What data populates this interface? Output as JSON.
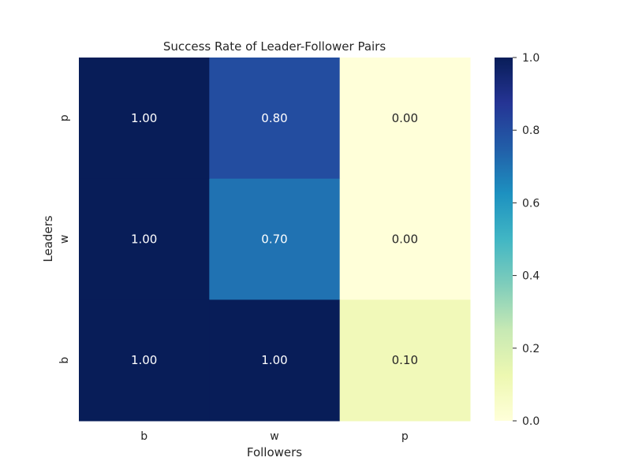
{
  "chart_data": {
    "type": "heatmap",
    "title": "Success Rate of Leader-Follower Pairs",
    "xlabel": "Followers",
    "ylabel": "Leaders",
    "x_categories": [
      "b",
      "w",
      "p"
    ],
    "y_categories": [
      "p",
      "w",
      "b"
    ],
    "values": [
      [
        1.0,
        0.8,
        0.0
      ],
      [
        1.0,
        0.7,
        0.0
      ],
      [
        1.0,
        1.0,
        0.1
      ]
    ],
    "value_format": "2 decimals",
    "colormap": "YlGnBu",
    "vmin": 0.0,
    "vmax": 1.0,
    "colorbar": {
      "ticks": [
        "0.0",
        "0.2",
        "0.4",
        "0.6",
        "0.8",
        "1.0"
      ]
    },
    "grid": false
  }
}
